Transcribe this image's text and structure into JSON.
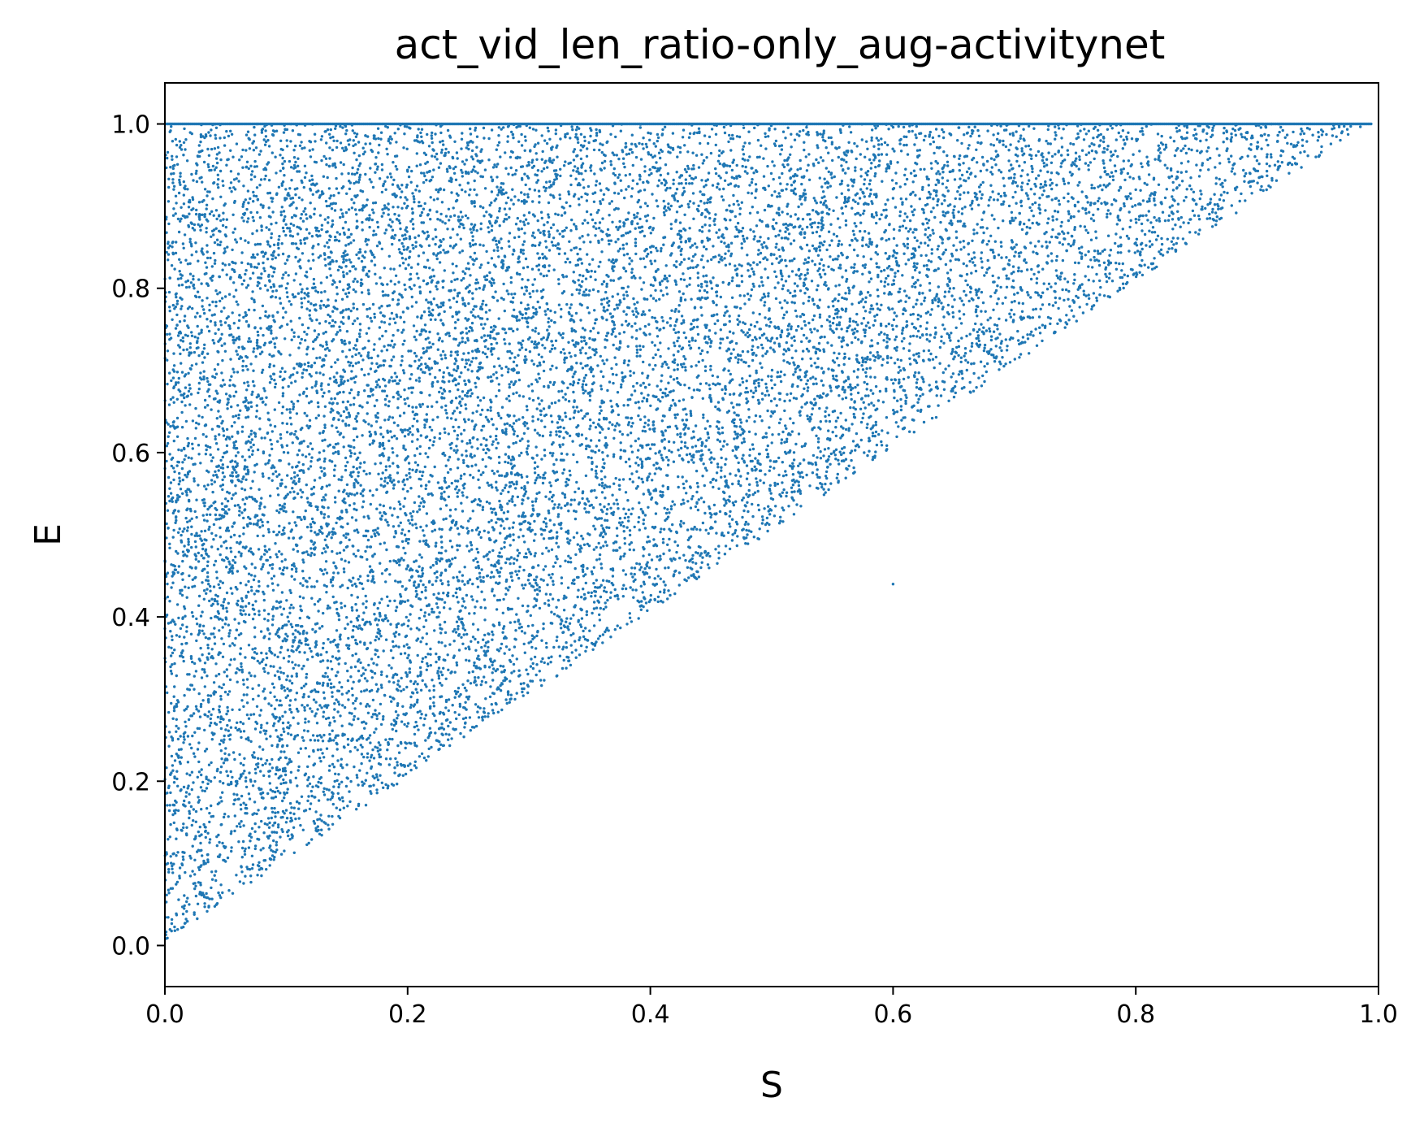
{
  "chart_data": {
    "type": "scatter",
    "title": "act_vid_len_ratio-only_aug-activitynet",
    "xlabel": "S",
    "ylabel": "E",
    "xlim": [
      0.0,
      1.0
    ],
    "ylim": [
      -0.05,
      1.05
    ],
    "xticks": [
      "0.0",
      "0.2",
      "0.4",
      "0.6",
      "0.8",
      "1.0"
    ],
    "yticks": [
      "0.0",
      "0.2",
      "0.4",
      "0.6",
      "0.8",
      "1.0"
    ],
    "grid": false,
    "legend": "none",
    "point_color": "#1f77b4",
    "distribution": {
      "description_region": "points fill the triangle 0 <= S <= E <= 1",
      "approx_point_count": 14000,
      "dense_line_at_E": 1.0,
      "outlier_points": [
        [
          0.6,
          0.44
        ]
      ],
      "sample_points": [
        [
          0.02,
          0.05
        ],
        [
          0.05,
          0.12
        ],
        [
          0.08,
          0.18
        ],
        [
          0.1,
          0.15
        ],
        [
          0.12,
          0.25
        ],
        [
          0.15,
          0.22
        ],
        [
          0.2,
          0.35
        ],
        [
          0.25,
          0.3
        ],
        [
          0.3,
          0.45
        ],
        [
          0.35,
          0.5
        ],
        [
          0.4,
          0.55
        ],
        [
          0.45,
          0.6
        ],
        [
          0.5,
          0.65
        ],
        [
          0.55,
          0.7
        ],
        [
          0.6,
          0.75
        ],
        [
          0.65,
          0.8
        ],
        [
          0.7,
          0.85
        ],
        [
          0.75,
          0.9
        ],
        [
          0.8,
          0.92
        ],
        [
          0.85,
          0.95
        ],
        [
          0.9,
          0.97
        ],
        [
          0.95,
          0.98
        ],
        [
          0.05,
          0.6
        ],
        [
          0.1,
          0.8
        ],
        [
          0.2,
          0.9
        ],
        [
          0.3,
          0.95
        ],
        [
          0.4,
          0.85
        ],
        [
          0.5,
          0.9
        ],
        [
          0.02,
          0.45
        ],
        [
          0.15,
          0.55
        ]
      ]
    }
  }
}
